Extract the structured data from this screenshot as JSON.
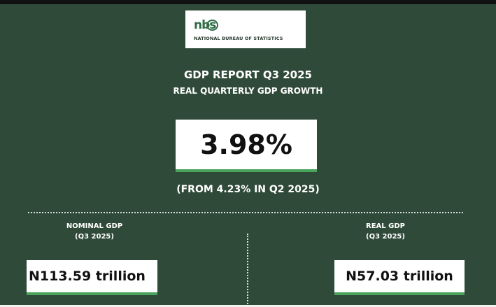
{
  "logo": {
    "mark": "nbs",
    "name": "NATIONAL BUREAU OF STATISTICS"
  },
  "report": {
    "title": "GDP REPORT Q3 2025",
    "subtitle": "REAL QUARTERLY GDP GROWTH",
    "growth_value": "3.98%",
    "comparison": "(FROM 4.23% IN Q2 2025)"
  },
  "nominal": {
    "label_line1": "NOMINAL GDP",
    "label_line2": "(Q3 2025)",
    "value": "N113.59 trillion"
  },
  "real": {
    "label_line1": "REAL GDP",
    "label_line2": "(Q3 2025)",
    "value": "N57.03 trillion"
  },
  "colors": {
    "background": "#2f4a39",
    "accent_underline": "#4aa45c",
    "logo_green": "#2f6b45"
  }
}
